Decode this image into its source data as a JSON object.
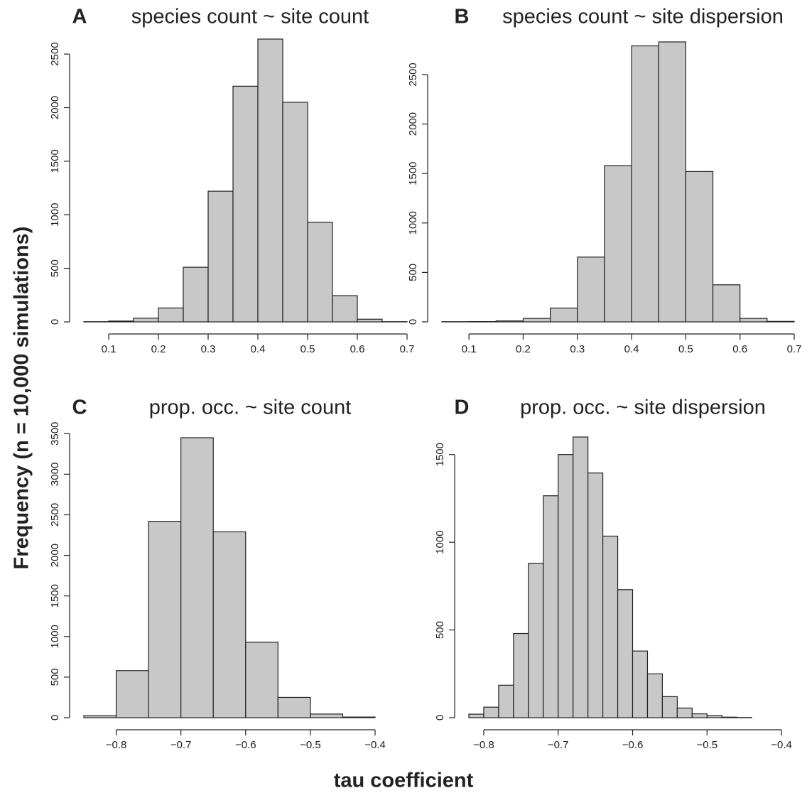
{
  "ylabel": "Frequency (n = 10,000 simulations)",
  "xlabel": "tau coefficient",
  "chart_data": [
    {
      "type": "histogram",
      "label": "A",
      "title": "species count ~ site count",
      "color": "#c8c8c8",
      "bins": [
        0.05,
        0.1,
        0.15,
        0.2,
        0.25,
        0.3,
        0.35,
        0.4,
        0.45,
        0.5,
        0.55,
        0.6,
        0.65,
        0.7
      ],
      "values": [
        2,
        8,
        35,
        130,
        510,
        1220,
        2200,
        2640,
        2050,
        930,
        245,
        25,
        2
      ],
      "xlim": [
        0.05,
        0.7
      ],
      "xticks": [
        0.1,
        0.2,
        0.3,
        0.4,
        0.5,
        0.6,
        0.7
      ],
      "ylim": [
        0,
        2640
      ],
      "yticks": [
        0,
        500,
        1000,
        1500,
        2000,
        2500
      ]
    },
    {
      "type": "histogram",
      "label": "B",
      "title": "species count ~ site dispersion",
      "color": "#c8c8c8",
      "bins": [
        0.05,
        0.1,
        0.15,
        0.2,
        0.25,
        0.3,
        0.35,
        0.4,
        0.45,
        0.5,
        0.55,
        0.6,
        0.65,
        0.7
      ],
      "values": [
        2,
        3,
        10,
        35,
        140,
        655,
        1580,
        2790,
        2830,
        1520,
        375,
        35,
        5
      ],
      "xlim": [
        0.05,
        0.7
      ],
      "xticks": [
        0.1,
        0.2,
        0.3,
        0.4,
        0.5,
        0.6,
        0.7
      ],
      "ylim": [
        0,
        2830
      ],
      "yticks": [
        0,
        500,
        1000,
        1500,
        2000,
        2500
      ]
    },
    {
      "type": "histogram",
      "label": "C",
      "title": "prop. occ. ~ site count",
      "color": "#c8c8c8",
      "bins": [
        -0.85,
        -0.8,
        -0.75,
        -0.7,
        -0.65,
        -0.6,
        -0.55,
        -0.5,
        -0.45,
        -0.4
      ],
      "values": [
        25,
        580,
        2420,
        3450,
        2290,
        930,
        250,
        45,
        8
      ],
      "xlim": [
        -0.85,
        -0.4
      ],
      "xticks": [
        {
          "value": -0.8,
          "label": "−0.8"
        },
        {
          "value": -0.7,
          "label": "−0.7"
        },
        {
          "value": -0.6,
          "label": "−0.6"
        },
        {
          "value": -0.5,
          "label": "−0.5"
        },
        {
          "value": -0.4,
          "label": "−0.4"
        }
      ],
      "ylim": [
        0,
        3450
      ],
      "yticks": [
        0,
        500,
        1000,
        1500,
        2000,
        2500,
        3000,
        3500
      ]
    },
    {
      "type": "histogram",
      "label": "D",
      "title": "prop. occ. ~ site dispersion",
      "color": "#c8c8c8",
      "bins": [
        -0.82,
        -0.8,
        -0.78,
        -0.76,
        -0.74,
        -0.72,
        -0.7,
        -0.68,
        -0.66,
        -0.64,
        -0.62,
        -0.6,
        -0.58,
        -0.56,
        -0.54,
        -0.52,
        -0.5,
        -0.48,
        -0.46,
        -0.44,
        -0.42,
        -0.4,
        -0.38
      ],
      "values": [
        20,
        60,
        185,
        480,
        880,
        1265,
        1500,
        1600,
        1395,
        1035,
        730,
        380,
        250,
        120,
        55,
        22,
        12,
        3,
        1,
        0,
        0,
        0
      ],
      "xlim": [
        -0.82,
        -0.38
      ],
      "xticks": [
        {
          "value": -0.8,
          "label": "−0.8"
        },
        {
          "value": -0.7,
          "label": "−0.7"
        },
        {
          "value": -0.6,
          "label": "−0.6"
        },
        {
          "value": -0.5,
          "label": "−0.5"
        },
        {
          "value": -0.4,
          "label": "−0.4"
        }
      ],
      "ylim": [
        0,
        1600
      ],
      "yticks": [
        0,
        500,
        1000,
        1500
      ]
    }
  ]
}
